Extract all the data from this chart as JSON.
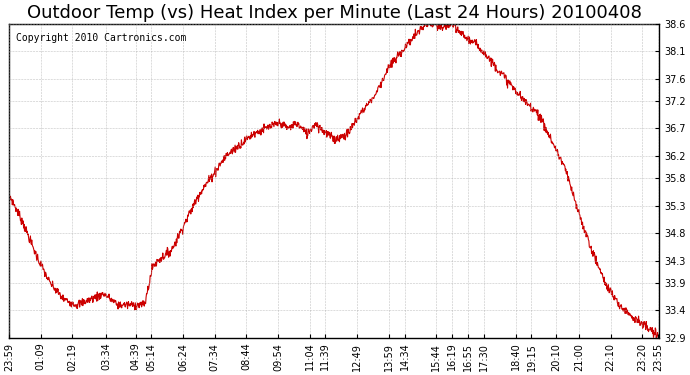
{
  "title": "Outdoor Temp (vs) Heat Index per Minute (Last 24 Hours) 20100408",
  "copyright": "Copyright 2010 Cartronics.com",
  "line_color": "#cc0000",
  "background_color": "#ffffff",
  "grid_color": "#aaaaaa",
  "ymin": 32.9,
  "ymax": 38.6,
  "yticks": [
    38.6,
    38.1,
    37.6,
    37.2,
    36.7,
    36.2,
    35.8,
    35.3,
    34.8,
    34.3,
    33.9,
    33.4,
    32.9
  ],
  "xtick_labels": [
    "23:59",
    "01:09",
    "02:19",
    "03:34",
    "04:39",
    "05:14",
    "06:24",
    "07:34",
    "08:44",
    "09:54",
    "11:04",
    "11:39",
    "12:49",
    "13:59",
    "14:34",
    "15:44",
    "16:19",
    "16:55",
    "17:30",
    "18:40",
    "19:15",
    "20:10",
    "21:00",
    "22:10",
    "23:20",
    "23:55"
  ],
  "xtick_positions": [
    0,
    70,
    140,
    215,
    280,
    315,
    385,
    455,
    525,
    595,
    665,
    700,
    770,
    840,
    875,
    945,
    980,
    1016,
    1051,
    1121,
    1156,
    1211,
    1261,
    1331,
    1401,
    1436
  ],
  "profile_x": [
    0,
    0.5,
    1.0,
    1.5,
    2.0,
    2.5,
    3.0,
    3.5,
    4.0,
    4.5,
    5.0,
    5.3,
    5.5,
    6.0,
    7.0,
    8.0,
    9.0,
    9.5,
    10.0,
    10.3,
    10.6,
    11.0,
    11.3,
    11.5,
    12.0,
    12.5,
    13.0,
    13.5,
    14.0,
    14.5,
    15.0,
    15.3,
    15.5,
    15.8,
    16.0,
    16.3,
    16.5,
    17.0,
    17.3,
    17.5,
    18.0,
    18.5,
    19.0,
    19.5,
    20.0,
    20.5,
    21.0,
    21.5,
    22.0,
    22.5,
    23.0,
    23.5,
    24.0
  ],
  "profile_y": [
    35.5,
    35.0,
    34.4,
    33.9,
    33.6,
    33.5,
    33.6,
    33.7,
    33.5,
    33.5,
    33.5,
    34.2,
    34.3,
    34.5,
    35.5,
    36.2,
    36.6,
    36.7,
    36.8,
    36.7,
    36.8,
    36.6,
    36.8,
    36.7,
    36.5,
    36.6,
    37.0,
    37.3,
    37.8,
    38.1,
    38.4,
    38.55,
    38.6,
    38.55,
    38.5,
    38.6,
    38.5,
    38.3,
    38.2,
    38.1,
    37.8,
    37.5,
    37.2,
    37.0,
    36.5,
    36.0,
    35.2,
    34.5,
    33.9,
    33.5,
    33.3,
    33.1,
    32.9
  ],
  "title_fontsize": 13,
  "copyright_fontsize": 7,
  "tick_fontsize": 7,
  "figsize": [
    6.9,
    3.75
  ],
  "dpi": 100
}
